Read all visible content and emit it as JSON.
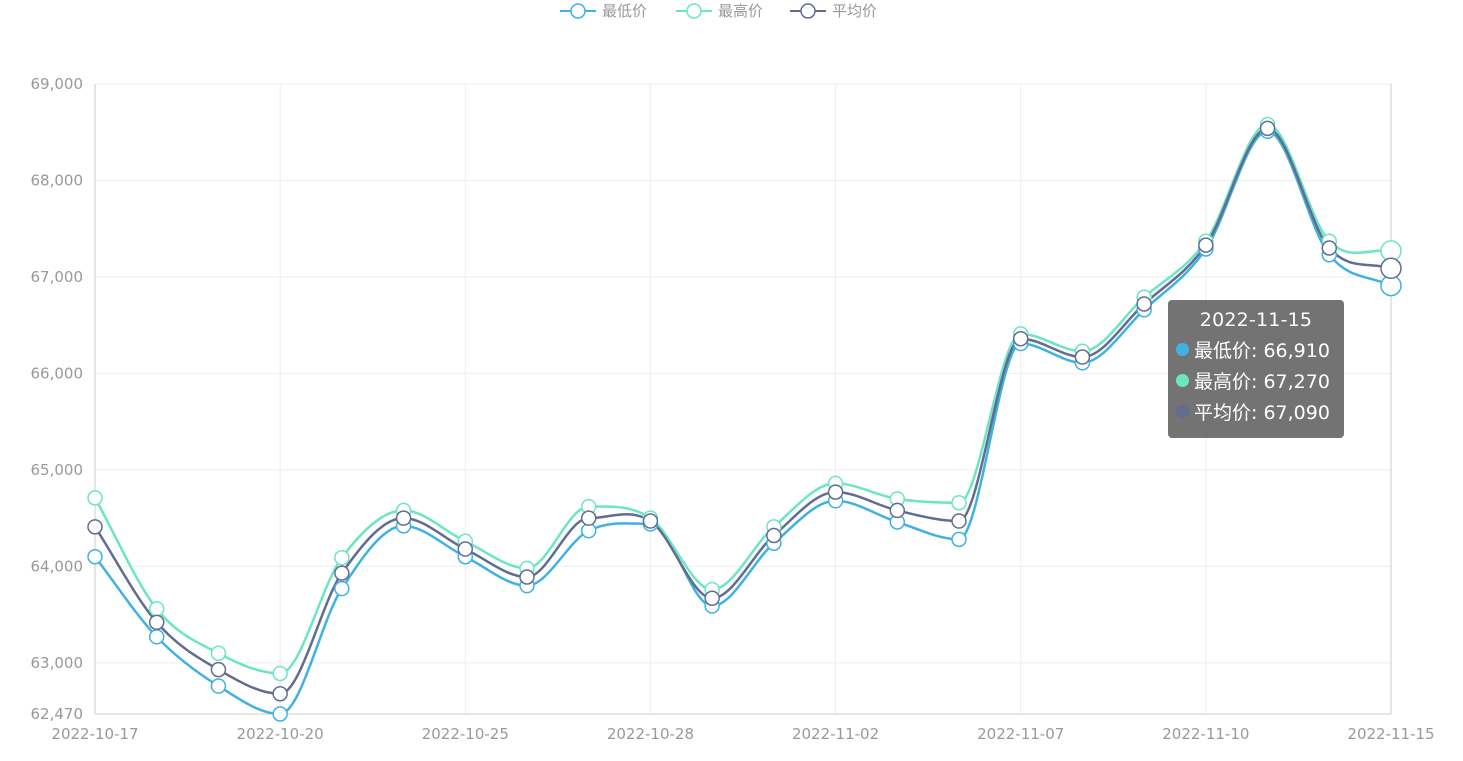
{
  "colors": {
    "min": "#3fb1e3",
    "max": "#6be6c1",
    "avg": "#626c91"
  },
  "chart_data": {
    "type": "line",
    "smooth": true,
    "x": [
      "2022-10-17",
      "2022-10-18",
      "2022-10-19",
      "2022-10-20",
      "2022-10-21",
      "2022-10-24",
      "2022-10-25",
      "2022-10-26",
      "2022-10-27",
      "2022-10-28",
      "2022-10-31",
      "2022-11-01",
      "2022-11-02",
      "2022-11-03",
      "2022-11-04",
      "2022-11-07",
      "2022-11-08",
      "2022-11-09",
      "2022-11-10",
      "2022-11-11",
      "2022-11-14",
      "2022-11-15"
    ],
    "x_tick_labels": [
      "2022-10-17",
      "2022-10-20",
      "2022-10-25",
      "2022-10-28",
      "2022-11-02",
      "2022-11-07",
      "2022-11-10",
      "2022-11-15"
    ],
    "y_tick_labels": [
      "62,470",
      "63,000",
      "64,000",
      "65,000",
      "66,000",
      "67,000",
      "68,000",
      "69,000"
    ],
    "y_ticks": [
      62470,
      63000,
      64000,
      65000,
      66000,
      67000,
      68000,
      69000
    ],
    "ylim": [
      62470,
      69000
    ],
    "grid": true,
    "legend_position": "top-center",
    "series": [
      {
        "name": "最低价",
        "color_key": "min",
        "values": [
          64100,
          63270,
          62760,
          62470,
          63770,
          64420,
          64100,
          63800,
          64370,
          64440,
          63590,
          64240,
          64680,
          64460,
          64280,
          66310,
          66110,
          66660,
          67290,
          68510,
          67230,
          66910
        ]
      },
      {
        "name": "最高价",
        "color_key": "max",
        "values": [
          64710,
          63560,
          63100,
          62890,
          64090,
          64580,
          64260,
          63980,
          64620,
          64500,
          63760,
          64410,
          64860,
          64700,
          64660,
          66410,
          66230,
          66790,
          67370,
          68580,
          67370,
          67270
        ]
      },
      {
        "name": "平均价",
        "color_key": "avg",
        "values": [
          64410,
          63420,
          62930,
          62680,
          63930,
          64500,
          64180,
          63890,
          64500,
          64470,
          63670,
          64320,
          64770,
          64580,
          64470,
          66360,
          66170,
          66720,
          67330,
          68540,
          67300,
          67090
        ]
      }
    ]
  },
  "legend": {
    "items": [
      {
        "label": "最低价"
      },
      {
        "label": "最高价"
      },
      {
        "label": "平均价"
      }
    ]
  },
  "tooltip": {
    "title": "2022-11-15",
    "rows": [
      {
        "text": "最低价: 66,910"
      },
      {
        "text": "最高价: 67,270"
      },
      {
        "text": "平均价: 67,090"
      }
    ]
  }
}
